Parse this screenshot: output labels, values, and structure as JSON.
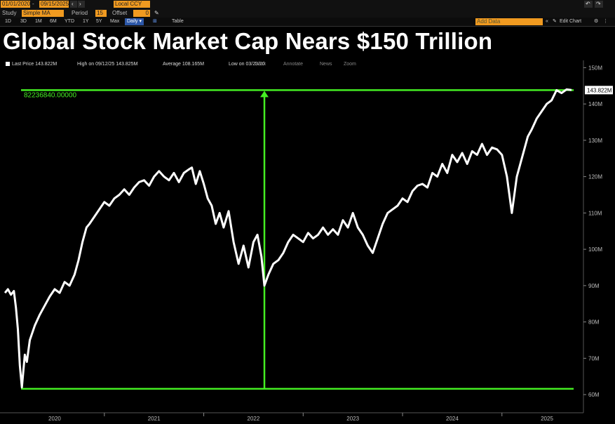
{
  "toolbar": {
    "start_date": "01/01/2020",
    "end_date": "09/15/2025",
    "currency": "Local CCY",
    "study_label": "Study",
    "study_value": "Simple MA",
    "period_label": "Period",
    "period_value": "15",
    "offset_label": "Offset",
    "offset_value": "0",
    "add_data_placeholder": "Add Data",
    "edit_chart": "Edit Chart",
    "ranges": [
      "1D",
      "3D",
      "1M",
      "6M",
      "YTD",
      "1Y",
      "5Y",
      "Max"
    ],
    "frequency": "Daily",
    "table_label": "Table"
  },
  "headline": "Global Stock Market Cap Nears $150 Trillion",
  "legend": {
    "last_price": "Last Price 143.822M",
    "high": "High on 09/12/25 143.825M",
    "average": "Average 108.165M",
    "low": "Low on 03/23/20",
    "track": "Track",
    "annotate": "Annotate",
    "news": "News",
    "zoom": "Zoom"
  },
  "colors": {
    "accent_orange": "#f09a20",
    "annotation_green": "#44ee22",
    "line": "#ffffff",
    "background": "#000000"
  },
  "chart_data": {
    "type": "line",
    "title": "Global Stock Market Cap Nears $150 Trillion",
    "ylim": [
      55,
      152
    ],
    "y_unit": "M",
    "y_ticks": [
      60,
      70,
      80,
      90,
      100,
      110,
      120,
      130,
      140,
      150
    ],
    "y_tick_labels": [
      "60M",
      "70M",
      "80M",
      "90M",
      "100M",
      "110M",
      "120M",
      "130M",
      "140M",
      "150M"
    ],
    "x_tick_labels": [
      "2020",
      "2021",
      "2022",
      "2023",
      "2024",
      "2025"
    ],
    "last_value_label": "143.822M",
    "annotation_text": "82236840.00000",
    "annotation_low": 61.6,
    "annotation_high": 143.8,
    "annotation_arrow_date": 2022.61,
    "series": [
      {
        "x": [
          2020.0,
          2020.03,
          2020.06,
          2020.09,
          2020.11,
          2020.13,
          2020.15,
          2020.17,
          2020.2,
          2020.22,
          2020.25,
          2020.3,
          2020.35,
          2020.4,
          2020.45,
          2020.5,
          2020.55,
          2020.6,
          2020.65,
          2020.7,
          2020.74,
          2020.78,
          2020.82,
          2020.85,
          2020.9,
          2020.95,
          2021.0,
          2021.05,
          2021.1,
          2021.15,
          2021.2,
          2021.25,
          2021.3,
          2021.35,
          2021.4,
          2021.45,
          2021.5,
          2021.55,
          2021.6,
          2021.65,
          2021.7,
          2021.75,
          2021.8,
          2021.85,
          2021.88,
          2021.92,
          2021.96,
          2022.0,
          2022.04,
          2022.08,
          2022.12,
          2022.16,
          2022.2,
          2022.25,
          2022.3,
          2022.35,
          2022.4,
          2022.45,
          2022.5,
          2022.54,
          2022.58,
          2022.61,
          2022.65,
          2022.7,
          2022.75,
          2022.8,
          2022.85,
          2022.9,
          2022.95,
          2023.0,
          2023.05,
          2023.1,
          2023.15,
          2023.2,
          2023.25,
          2023.3,
          2023.35,
          2023.4,
          2023.45,
          2023.5,
          2023.55,
          2023.6,
          2023.65,
          2023.7,
          2023.75,
          2023.8,
          2023.85,
          2023.9,
          2023.95,
          2024.0,
          2024.05,
          2024.1,
          2024.15,
          2024.2,
          2024.25,
          2024.3,
          2024.35,
          2024.4,
          2024.45,
          2024.5,
          2024.55,
          2024.6,
          2024.65,
          2024.7,
          2024.75,
          2024.8,
          2024.85,
          2024.9,
          2024.95,
          2025.0,
          2025.05,
          2025.1,
          2025.15,
          2025.2,
          2025.24,
          2025.26,
          2025.3,
          2025.35,
          2025.4,
          2025.45,
          2025.5,
          2025.55,
          2025.6,
          2025.65,
          2025.7
        ],
        "values": [
          88,
          89,
          87.5,
          88.5,
          84,
          78,
          68,
          62,
          71,
          69,
          75,
          79,
          82,
          84.5,
          87,
          89,
          88,
          91,
          90,
          93,
          97,
          102,
          106,
          107,
          109,
          111,
          113,
          112,
          114,
          115,
          116.5,
          115,
          117,
          118.5,
          119,
          117.5,
          120,
          121.5,
          120,
          119,
          121,
          118.5,
          121,
          122,
          122.5,
          118,
          121.5,
          118,
          114,
          112,
          107,
          110,
          106,
          110.5,
          102,
          96,
          101,
          95,
          102,
          104,
          98,
          90,
          93,
          96,
          97,
          99,
          102,
          104,
          103,
          102,
          104.5,
          103,
          104,
          106,
          104,
          105.5,
          104,
          108,
          106,
          110,
          106,
          104,
          101,
          99,
          103,
          107,
          110,
          111,
          112,
          114,
          113,
          116,
          117.5,
          118,
          117,
          121,
          120,
          123.5,
          121,
          126,
          124,
          126.5,
          123.5,
          127,
          126,
          129,
          126,
          128,
          127.5,
          126,
          120,
          110,
          120,
          125,
          129,
          131,
          133,
          136,
          138,
          140,
          141,
          143.8,
          143,
          144,
          143.822
        ]
      }
    ]
  }
}
